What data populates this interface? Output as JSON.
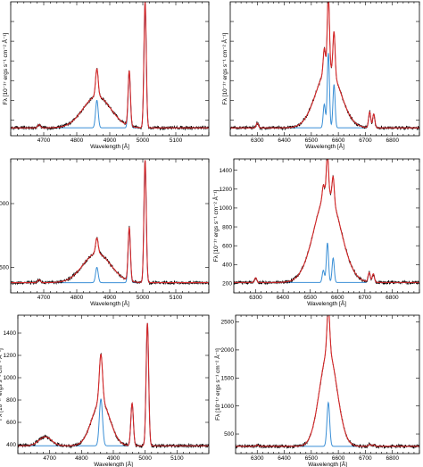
{
  "colors": {
    "observed": "#000000",
    "model": "#d62728",
    "narrow_component": "#3a8fd6",
    "axes": "#000000"
  },
  "chart_data": [
    {
      "type": "line",
      "panel": "row1-left",
      "xlabel": "Wavelength [Å]",
      "ylabel": "Fλ [10⁻¹⁷ ergs s⁻¹ cm⁻² Å⁻¹]",
      "xlim": [
        4600,
        5200
      ],
      "ylim": [
        60,
        400
      ],
      "x_ticks": [
        4700,
        4800,
        4900,
        5000,
        5100
      ],
      "y_ticks": [
        100,
        150,
        200,
        250,
        300,
        350
      ],
      "y_tick_labels": [
        "",
        "",
        "",
        "",
        "",
        ""
      ],
      "continuum": 80,
      "lines": [
        {
          "center": 4686,
          "width": 4,
          "amp": 8,
          "component": "narrow"
        },
        {
          "center": 4861,
          "width": 42,
          "amp": 80,
          "component": "broad"
        },
        {
          "center": 4861,
          "width": 4,
          "amp": 70,
          "component": "narrow"
        },
        {
          "center": 4959,
          "width": 3.5,
          "amp": 140,
          "component": "narrow"
        },
        {
          "center": 5007,
          "width": 3.5,
          "amp": 320,
          "component": "narrow"
        }
      ]
    },
    {
      "type": "line",
      "panel": "row1-right",
      "xlabel": "Wavelength [Å]",
      "ylabel": "Fλ [10⁻¹⁷ ergs s⁻¹ cm⁻² Å⁻¹]",
      "xlim": [
        6200,
        6900
      ],
      "ylim": [
        60,
        400
      ],
      "x_ticks": [
        6300,
        6400,
        6500,
        6600,
        6700,
        6800
      ],
      "y_ticks": [
        100,
        150,
        200,
        250,
        300,
        350
      ],
      "y_tick_labels": [
        "",
        "",
        "",
        "",
        "",
        ""
      ],
      "continuum": 80,
      "lines": [
        {
          "center": 6300,
          "width": 4,
          "amp": 12,
          "component": "narrow"
        },
        {
          "center": 6563,
          "width": 45,
          "amp": 150,
          "component": "broad"
        },
        {
          "center": 6563,
          "width": 4,
          "amp": 190,
          "component": "narrow"
        },
        {
          "center": 6548,
          "width": 4,
          "amp": 60,
          "component": "narrow"
        },
        {
          "center": 6584,
          "width": 4,
          "amp": 110,
          "component": "narrow"
        },
        {
          "center": 6716,
          "width": 4,
          "amp": 40,
          "component": "narrow"
        },
        {
          "center": 6731,
          "width": 4,
          "amp": 35,
          "component": "narrow"
        }
      ]
    },
    {
      "type": "line",
      "panel": "row2-left",
      "xlabel": "Wavelength [Å]",
      "ylabel": "Fλ [10⁻¹⁷ ergs s⁻¹ cm⁻² Å⁻¹]",
      "xlim": [
        4600,
        5200
      ],
      "ylim": [
        300,
        1350
      ],
      "x_ticks": [
        4700,
        4800,
        4900,
        5000,
        5100
      ],
      "y_ticks": [
        500,
        1000
      ],
      "y_tick_labels": [
        "500",
        "1000"
      ],
      "continuum": 380,
      "lines": [
        {
          "center": 4686,
          "width": 4,
          "amp": 22,
          "component": "narrow"
        },
        {
          "center": 4861,
          "width": 42,
          "amp": 230,
          "component": "broad"
        },
        {
          "center": 4861,
          "width": 4,
          "amp": 120,
          "component": "narrow"
        },
        {
          "center": 4959,
          "width": 3.5,
          "amp": 420,
          "component": "narrow"
        },
        {
          "center": 5007,
          "width": 3.5,
          "amp": 960,
          "component": "narrow"
        }
      ]
    },
    {
      "type": "line",
      "panel": "row2-right",
      "xlabel": "Wavelength [Å]",
      "ylabel": "Fλ [10⁻¹⁷ ergs s⁻¹ cm⁻² Å⁻¹]",
      "xlim": [
        6220,
        6900
      ],
      "ylim": [
        100,
        1520
      ],
      "x_ticks": [
        6300,
        6400,
        6500,
        6600,
        6700,
        6800
      ],
      "y_ticks": [
        200,
        400,
        600,
        800,
        1000,
        1200,
        1400
      ],
      "y_tick_labels": [
        "200",
        "400",
        "600",
        "800",
        "1000",
        "1200",
        "1400"
      ],
      "continuum": 210,
      "lines": [
        {
          "center": 6300,
          "width": 4,
          "amp": 50,
          "component": "narrow"
        },
        {
          "center": 6563,
          "width": 48,
          "amp": 950,
          "component": "broad"
        },
        {
          "center": 6563,
          "width": 4,
          "amp": 420,
          "component": "narrow"
        },
        {
          "center": 6548,
          "width": 4,
          "amp": 130,
          "component": "narrow"
        },
        {
          "center": 6584,
          "width": 4,
          "amp": 260,
          "component": "narrow"
        },
        {
          "center": 6716,
          "width": 4,
          "amp": 100,
          "component": "narrow"
        },
        {
          "center": 6731,
          "width": 4,
          "amp": 90,
          "component": "narrow"
        }
      ]
    },
    {
      "type": "line",
      "panel": "row3-left",
      "xlabel": "Wavelength [Å]",
      "ylabel": "Fλ [10⁻¹⁷ ergs s⁻¹ cm⁻² Å⁻¹]",
      "xlim": [
        4600,
        5200
      ],
      "ylim": [
        320,
        1560
      ],
      "x_ticks": [
        4700,
        4800,
        4900,
        5000,
        5100
      ],
      "y_ticks": [
        400,
        600,
        800,
        1000,
        1200,
        1400
      ],
      "y_tick_labels": [
        "400",
        "600",
        "800",
        "1000",
        "1200",
        "1400"
      ],
      "continuum": 390,
      "lines": [
        {
          "center": 4686,
          "width": 20,
          "amp": 80,
          "component": "broad"
        },
        {
          "center": 4861,
          "width": 28,
          "amp": 400,
          "component": "broad"
        },
        {
          "center": 4861,
          "width": 5,
          "amp": 420,
          "component": "narrow"
        },
        {
          "center": 4959,
          "width": 4,
          "amp": 380,
          "component": "narrow"
        },
        {
          "center": 5007,
          "width": 4,
          "amp": 1100,
          "component": "narrow"
        }
      ]
    },
    {
      "type": "line",
      "panel": "row3-right",
      "xlabel": "Wavelength [Å]",
      "ylabel": "Fλ [10⁻¹⁷ ergs s⁻¹ cm⁻² Å⁻¹]",
      "xlim": [
        6220,
        6900
      ],
      "ylim": [
        150,
        2620
      ],
      "x_ticks": [
        6300,
        6400,
        6500,
        6600,
        6700,
        6800
      ],
      "y_ticks": [
        500,
        1000,
        1500,
        2000,
        2500
      ],
      "y_tick_labels": [
        "500",
        "1000",
        "1500",
        "2000",
        "2500"
      ],
      "continuum": 280,
      "lines": [
        {
          "center": 6300,
          "width": 4,
          "amp": 25,
          "component": "narrow"
        },
        {
          "center": 6563,
          "width": 32,
          "amp": 1700,
          "component": "broad"
        },
        {
          "center": 6563,
          "width": 5,
          "amp": 780,
          "component": "narrow"
        },
        {
          "center": 6716,
          "width": 4,
          "amp": 35,
          "component": "narrow"
        },
        {
          "center": 6731,
          "width": 4,
          "amp": 30,
          "component": "narrow"
        }
      ]
    }
  ]
}
